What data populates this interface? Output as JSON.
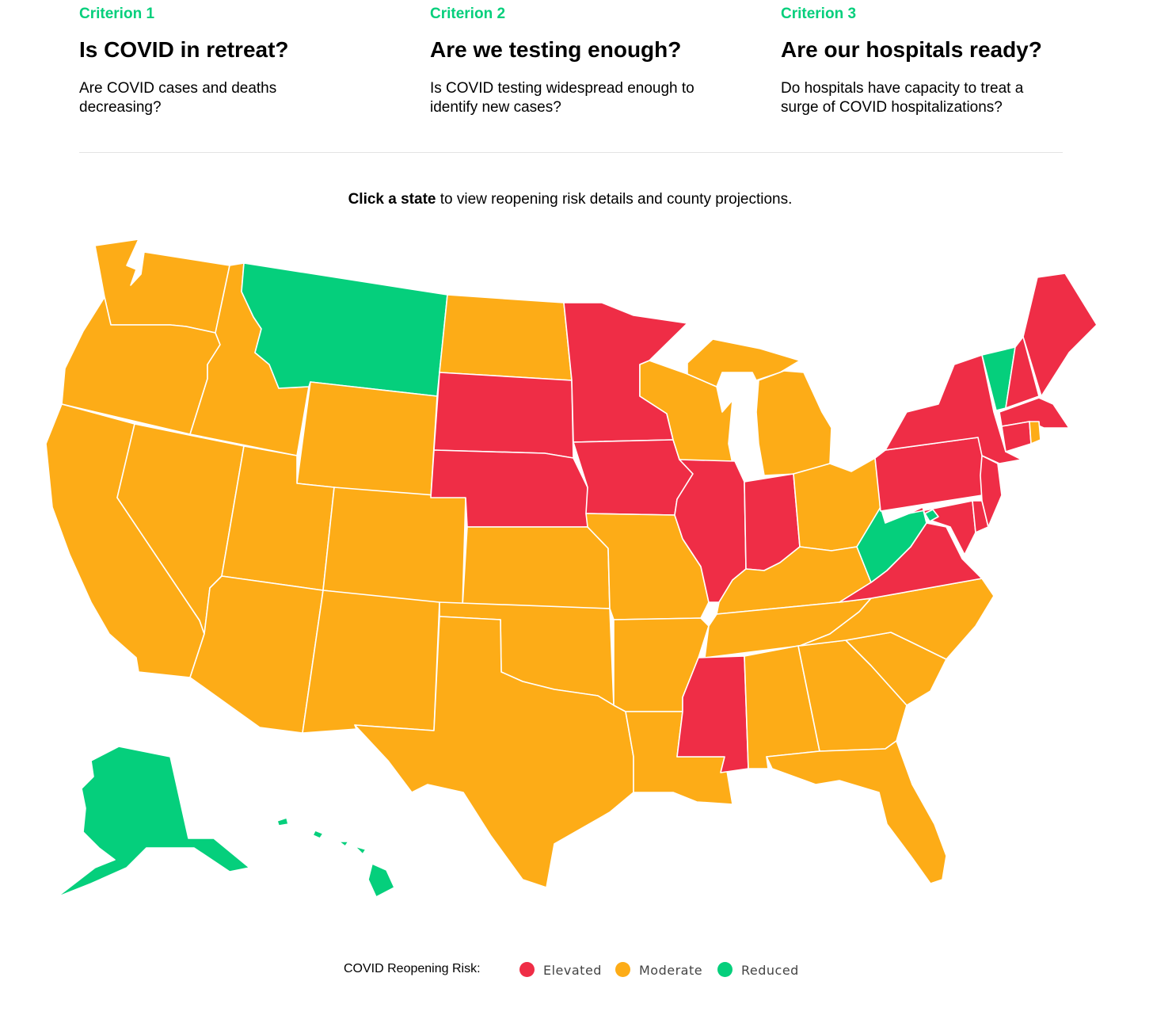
{
  "criteria": [
    {
      "label": "Criterion 1",
      "question": "Is COVID in retreat?",
      "description": "Are COVID cases and deaths decreasing?"
    },
    {
      "label": "Criterion 2",
      "question": "Are we testing enough?",
      "description": "Is COVID testing widespread enough to identify new cases?"
    },
    {
      "label": "Criterion 3",
      "question": "Are our hospitals ready?",
      "description": "Do hospitals have capacity to treat a surge of COVID hospitalizations?"
    }
  ],
  "prompt": {
    "bold": "Click a state",
    "rest": " to view reopening risk details and county projections."
  },
  "colors": {
    "Elevated": "#ef2d46",
    "Moderate": "#fdac17",
    "Reduced": "#05cf7c",
    "accent": "#05cf7c"
  },
  "legend": {
    "title": "COVID Reopening Risk:",
    "items": [
      {
        "level": "Elevated",
        "label": "Elevated"
      },
      {
        "level": "Moderate",
        "label": "Moderate"
      },
      {
        "level": "Reduced",
        "label": "Reduced"
      }
    ]
  },
  "states": {
    "WA": "Moderate",
    "OR": "Moderate",
    "CA": "Moderate",
    "ID": "Moderate",
    "NV": "Moderate",
    "MT": "Reduced",
    "WY": "Moderate",
    "UT": "Moderate",
    "AZ": "Moderate",
    "CO": "Moderate",
    "NM": "Moderate",
    "ND": "Moderate",
    "SD": "Elevated",
    "NE": "Elevated",
    "KS": "Moderate",
    "OK": "Moderate",
    "TX": "Moderate",
    "MN": "Elevated",
    "IA": "Elevated",
    "MO": "Moderate",
    "AR": "Moderate",
    "LA": "Moderate",
    "WI": "Moderate",
    "IL": "Elevated",
    "MI": "Moderate",
    "IN": "Elevated",
    "OH": "Moderate",
    "KY": "Moderate",
    "TN": "Moderate",
    "MS": "Elevated",
    "AL": "Moderate",
    "GA": "Moderate",
    "FL": "Moderate",
    "SC": "Moderate",
    "NC": "Moderate",
    "VA": "Elevated",
    "WV": "Reduced",
    "PA": "Elevated",
    "NY": "Elevated",
    "VT": "Reduced",
    "NH": "Elevated",
    "ME": "Elevated",
    "MA": "Elevated",
    "RI": "Moderate",
    "CT": "Elevated",
    "NJ": "Elevated",
    "DE": "Elevated",
    "MD": "Elevated",
    "DC": "Reduced",
    "AK": "Reduced",
    "HI": "Reduced"
  }
}
